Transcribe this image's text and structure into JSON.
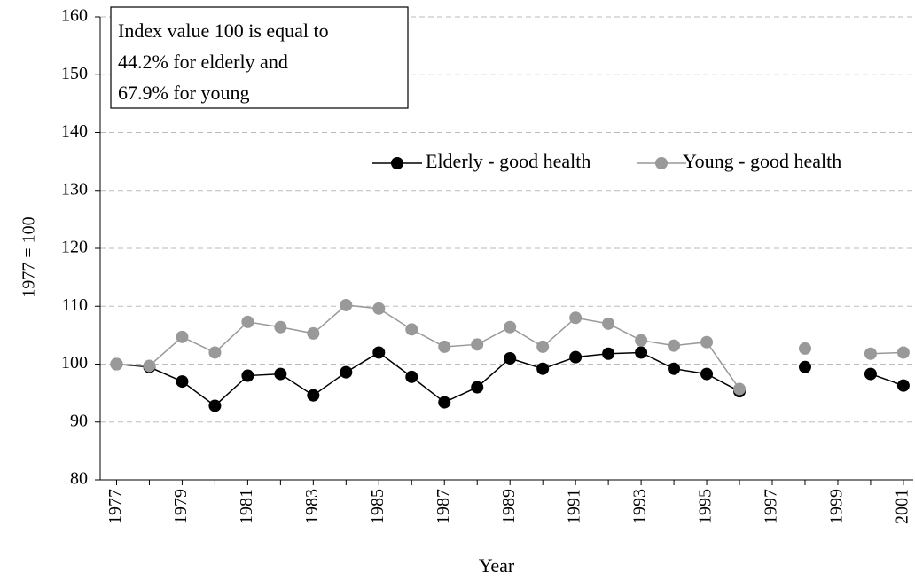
{
  "chart_data": {
    "type": "line",
    "annotation": [
      "Index value 100 is equal to",
      "44.2% for elderly and",
      "67.9% for young"
    ],
    "x_label": "Year",
    "y_label": "1977 = 100",
    "x": [
      1977,
      1978,
      1979,
      1980,
      1981,
      1982,
      1983,
      1984,
      1985,
      1986,
      1987,
      1988,
      1989,
      1990,
      1991,
      1992,
      1993,
      1994,
      1995,
      1996,
      1997,
      1998,
      1999,
      2000,
      2001
    ],
    "series": [
      {
        "name": "Elderly - good health",
        "color": "#000000",
        "values": [
          100,
          99.5,
          97,
          92.8,
          98,
          98.3,
          94.6,
          98.6,
          102,
          97.8,
          93.4,
          96,
          101,
          99.2,
          101.2,
          101.8,
          102,
          99.2,
          98.3,
          95.3,
          null,
          99.5,
          null,
          98.3,
          96.3
        ]
      },
      {
        "name": "Young - good health",
        "color": "#999999",
        "values": [
          100,
          99.7,
          104.7,
          102,
          107.3,
          106.4,
          105.3,
          110.2,
          109.6,
          106,
          103,
          103.4,
          106.4,
          103,
          108,
          107,
          104.1,
          103.2,
          103.8,
          95.7,
          null,
          102.7,
          null,
          101.8,
          102
        ]
      }
    ],
    "xlim": [
      1976.5,
      2001.3
    ],
    "xticks": [
      1977,
      1979,
      1981,
      1983,
      1985,
      1987,
      1989,
      1991,
      1993,
      1995,
      1997,
      1999,
      2001
    ],
    "ylim": [
      80,
      160
    ],
    "yticks": [
      80,
      90,
      100,
      110,
      120,
      130,
      140,
      150,
      160
    ],
    "grid": true
  }
}
